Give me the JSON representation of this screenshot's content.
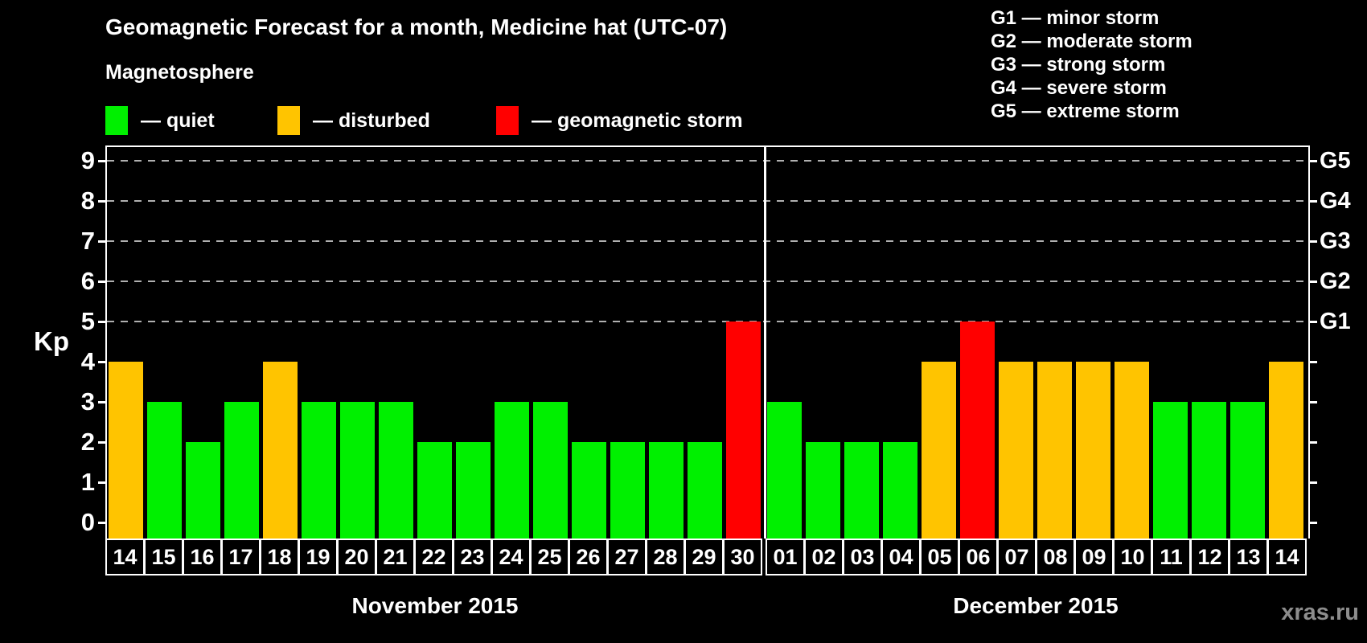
{
  "title": "Geomagnetic Forecast for a month, Medicine hat (UTC-07)",
  "subtitle": "Magnetosphere",
  "legend": {
    "items": [
      {
        "key": "quiet",
        "label": "— quiet",
        "color": "#00f000"
      },
      {
        "key": "disturbed",
        "label": "— disturbed",
        "color": "#ffc400"
      },
      {
        "key": "storm",
        "label": "— geomagnetic storm",
        "color": "#ff0000"
      }
    ]
  },
  "g_legend": [
    "G1 — minor storm",
    "G2 — moderate storm",
    "G3 — strong storm",
    "G4 — severe storm",
    "G5 — extreme storm"
  ],
  "watermark": "xras.ru",
  "chart_data": {
    "type": "bar",
    "title": "Geomagnetic Forecast for a month, Medicine hat (UTC-07)",
    "ylabel": "Kp",
    "ylim": [
      0,
      9
    ],
    "yticks": [
      0,
      1,
      2,
      3,
      4,
      5,
      6,
      7,
      8,
      9
    ],
    "gridlines_at": [
      5,
      6,
      7,
      8,
      9
    ],
    "grid": "dashed horizontal at storm thresholds only",
    "legend_position": "top",
    "right_axis": [
      {
        "kp": 5,
        "label": "G1"
      },
      {
        "kp": 6,
        "label": "G2"
      },
      {
        "kp": 7,
        "label": "G3"
      },
      {
        "kp": 8,
        "label": "G4"
      },
      {
        "kp": 9,
        "label": "G5"
      }
    ],
    "colors": {
      "quiet": "#00f000",
      "disturbed": "#ffc400",
      "storm": "#ff0000"
    },
    "groups": [
      {
        "month": "November 2015",
        "days": [
          "14",
          "15",
          "16",
          "17",
          "18",
          "19",
          "20",
          "21",
          "22",
          "23",
          "24",
          "25",
          "26",
          "27",
          "28",
          "29",
          "30"
        ],
        "values": [
          4,
          3,
          2,
          3,
          4,
          3,
          3,
          3,
          2,
          2,
          3,
          3,
          2,
          2,
          2,
          2,
          5
        ],
        "status": [
          "disturbed",
          "quiet",
          "quiet",
          "quiet",
          "disturbed",
          "quiet",
          "quiet",
          "quiet",
          "quiet",
          "quiet",
          "quiet",
          "quiet",
          "quiet",
          "quiet",
          "quiet",
          "quiet",
          "storm"
        ]
      },
      {
        "month": "December 2015",
        "days": [
          "01",
          "02",
          "03",
          "04",
          "05",
          "06",
          "07",
          "08",
          "09",
          "10",
          "11",
          "12",
          "13",
          "14"
        ],
        "values": [
          3,
          2,
          2,
          2,
          4,
          5,
          4,
          4,
          4,
          4,
          3,
          3,
          3,
          4
        ],
        "status": [
          "quiet",
          "quiet",
          "quiet",
          "quiet",
          "disturbed",
          "storm",
          "disturbed",
          "disturbed",
          "disturbed",
          "disturbed",
          "quiet",
          "quiet",
          "quiet",
          "disturbed"
        ]
      }
    ]
  }
}
